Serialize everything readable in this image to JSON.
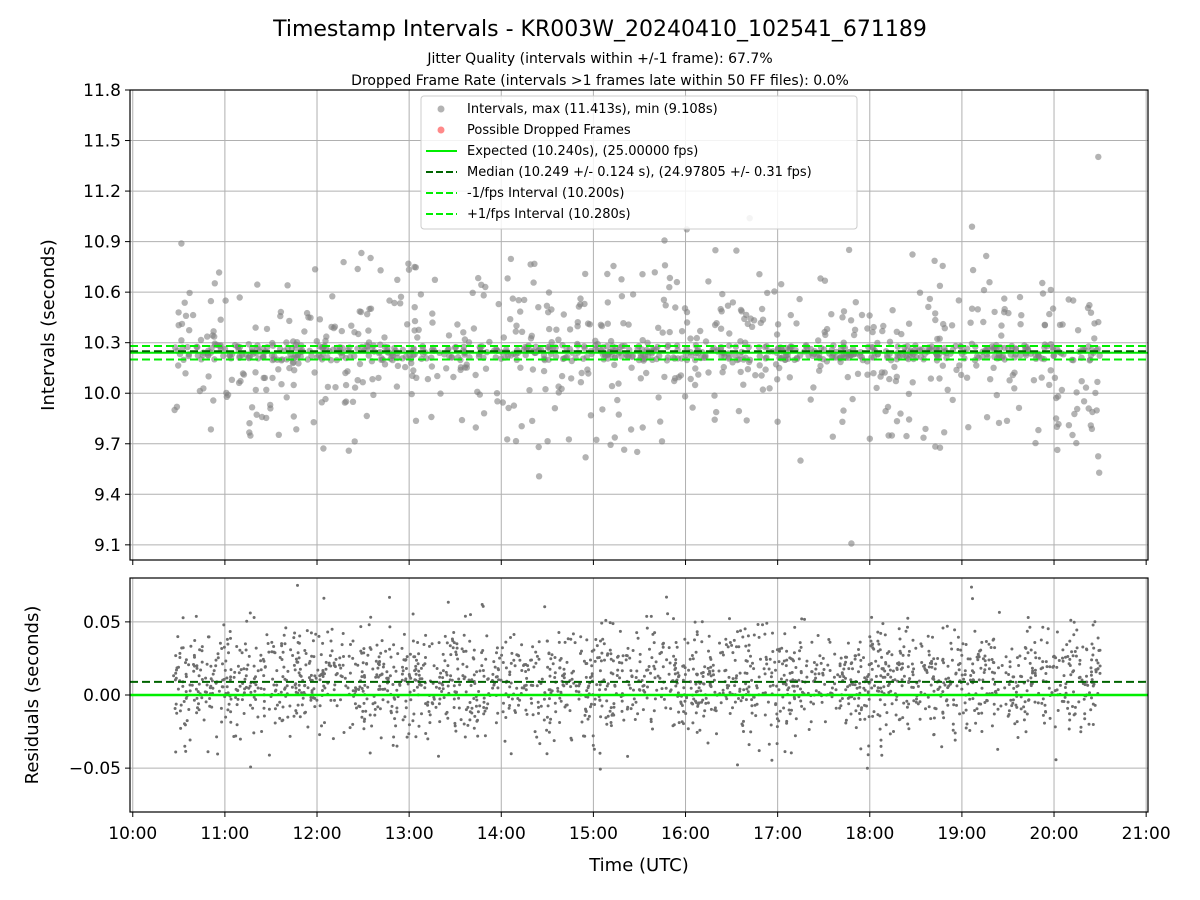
{
  "figure": {
    "title": "Timestamp Intervals - KR003W_20240410_102541_671189",
    "subtitle_1": "Jitter Quality (intervals within +/-1 frame): 67.7%",
    "subtitle_2": "Dropped Frame Rate (intervals >1 frames late within 50 FF files): 0.0%",
    "xlabel": "Time (UTC)"
  },
  "colors": {
    "points": "#808080",
    "dropped": "#ff3b3b",
    "expected": "#00ee00",
    "median": "#006400",
    "fps_interval": "#00ee00",
    "grid": "#b0b0b0"
  },
  "chart_data": [
    {
      "type": "scatter",
      "name": "intervals",
      "ylabel": "Intervals (seconds)",
      "xlim": [
        9.97,
        21.02
      ],
      "ylim": [
        9.01,
        11.8
      ],
      "yticks": [
        9.1,
        9.4,
        9.7,
        10.0,
        10.3,
        10.6,
        10.9,
        11.2,
        11.5,
        11.8
      ],
      "ytick_labels": [
        "9.1",
        "9.4",
        "9.7",
        "10.0",
        "10.3",
        "10.6",
        "10.9",
        "11.2",
        "11.5",
        "11.8"
      ],
      "xticks": [
        10,
        11,
        12,
        13,
        14,
        15,
        16,
        17,
        18,
        19,
        20,
        21
      ],
      "grid": true,
      "legend_position": "upper-center",
      "x_start": 10.43,
      "x_end": 20.5,
      "point_count": 1150,
      "series": [
        {
          "name": "Intervals, max (11.413s), min (9.108s)",
          "kind": "points",
          "max": 11.413,
          "min": 9.108
        },
        {
          "name": "Possible Dropped Frames",
          "kind": "points",
          "values": []
        }
      ],
      "lines": [
        {
          "name": "Expected (10.240s), (25.00000 fps)",
          "y": 10.24,
          "style": "solid"
        },
        {
          "name": "Median (10.249 +/- 0.124 s), (24.97805 +/- 0.31 fps)",
          "y": 10.249,
          "style": "dashed"
        },
        {
          "name": "-1/fps Interval (10.200s)",
          "y": 10.2,
          "style": "dashed"
        },
        {
          "name": "+1/fps Interval (10.280s)",
          "y": 10.28,
          "style": "dashed"
        }
      ]
    },
    {
      "type": "scatter",
      "name": "residuals",
      "ylabel": "Residuals (seconds)",
      "xlim": [
        9.97,
        21.02
      ],
      "ylim": [
        -0.08,
        0.08
      ],
      "yticks": [
        -0.05,
        0.0,
        0.05
      ],
      "ytick_labels": [
        "−0.05",
        "0.00",
        "0.05"
      ],
      "xticks": [
        10,
        11,
        12,
        13,
        14,
        15,
        16,
        17,
        18,
        19,
        20,
        21
      ],
      "xtick_labels": [
        "10:00",
        "11:00",
        "12:00",
        "13:00",
        "14:00",
        "15:00",
        "16:00",
        "17:00",
        "18:00",
        "19:00",
        "20:00",
        "21:00"
      ],
      "grid": true,
      "x_start": 10.43,
      "x_end": 20.5,
      "point_count": 2100,
      "lines": [
        {
          "name": "zero",
          "y": 0.0,
          "style": "solid"
        },
        {
          "name": "median offset",
          "y": 0.009,
          "style": "dashed"
        }
      ]
    }
  ]
}
